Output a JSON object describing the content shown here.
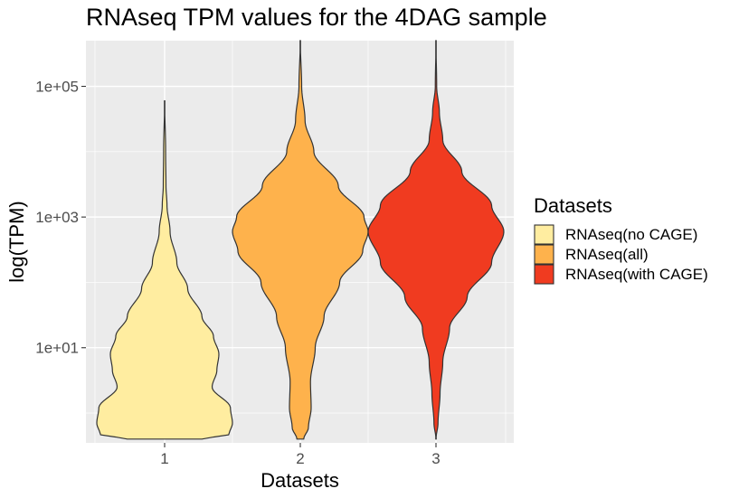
{
  "chart_data": {
    "type": "violin",
    "title": "RNAseq TPM values for the 4DAG sample",
    "xlabel": "Datasets",
    "ylabel": "log(TPM)",
    "y_scale": "log10",
    "ylim": [
      0.35,
      500000
    ],
    "y_ticks": [
      {
        "value": 10,
        "label": "1e+01"
      },
      {
        "value": 1000,
        "label": "1e+03"
      },
      {
        "value": 100000,
        "label": "1e+05"
      }
    ],
    "y_minor_ticks": [
      1,
      100,
      10000
    ],
    "categories": [
      "1",
      "2",
      "3"
    ],
    "legend": {
      "title": "Datasets",
      "position": "right"
    },
    "grid": true,
    "series": [
      {
        "name": "RNAseq(no CAGE)",
        "category": "1",
        "color": "#FFEDA0",
        "min": 0.4,
        "max": 60000,
        "density": [
          [
            0.4,
            0.55
          ],
          [
            0.47,
            0.95
          ],
          [
            0.7,
            1.0
          ],
          [
            1.2,
            0.97
          ],
          [
            2.5,
            0.7
          ],
          [
            4.5,
            0.77
          ],
          [
            8,
            0.8
          ],
          [
            15,
            0.72
          ],
          [
            30,
            0.55
          ],
          [
            80,
            0.34
          ],
          [
            200,
            0.18
          ],
          [
            600,
            0.08
          ],
          [
            1500,
            0.035
          ],
          [
            3000,
            0.02
          ],
          [
            10000,
            0.015
          ],
          [
            60000,
            0.0
          ]
        ]
      },
      {
        "name": "RNAseq(all)",
        "category": "2",
        "color": "#FEB24C",
        "min": 0.4,
        "max": 500000,
        "density": [
          [
            0.4,
            0.05
          ],
          [
            0.6,
            0.12
          ],
          [
            1.2,
            0.16
          ],
          [
            3,
            0.15
          ],
          [
            10,
            0.22
          ],
          [
            30,
            0.35
          ],
          [
            100,
            0.58
          ],
          [
            300,
            0.92
          ],
          [
            600,
            1.0
          ],
          [
            1000,
            0.94
          ],
          [
            3000,
            0.56
          ],
          [
            10000,
            0.2
          ],
          [
            30000,
            0.07
          ],
          [
            100000,
            0.02
          ],
          [
            500000,
            0.0
          ]
        ]
      },
      {
        "name": "RNAseq(with CAGE)",
        "category": "3",
        "color": "#F03B20",
        "min": 0.4,
        "max": 500000,
        "density": [
          [
            0.4,
            0.0
          ],
          [
            0.7,
            0.03
          ],
          [
            2,
            0.06
          ],
          [
            6,
            0.1
          ],
          [
            20,
            0.2
          ],
          [
            60,
            0.46
          ],
          [
            200,
            0.82
          ],
          [
            600,
            1.0
          ],
          [
            1500,
            0.82
          ],
          [
            5000,
            0.38
          ],
          [
            15000,
            0.1
          ],
          [
            40000,
            0.05
          ],
          [
            100000,
            0.01
          ],
          [
            500000,
            0.0
          ]
        ]
      }
    ]
  }
}
